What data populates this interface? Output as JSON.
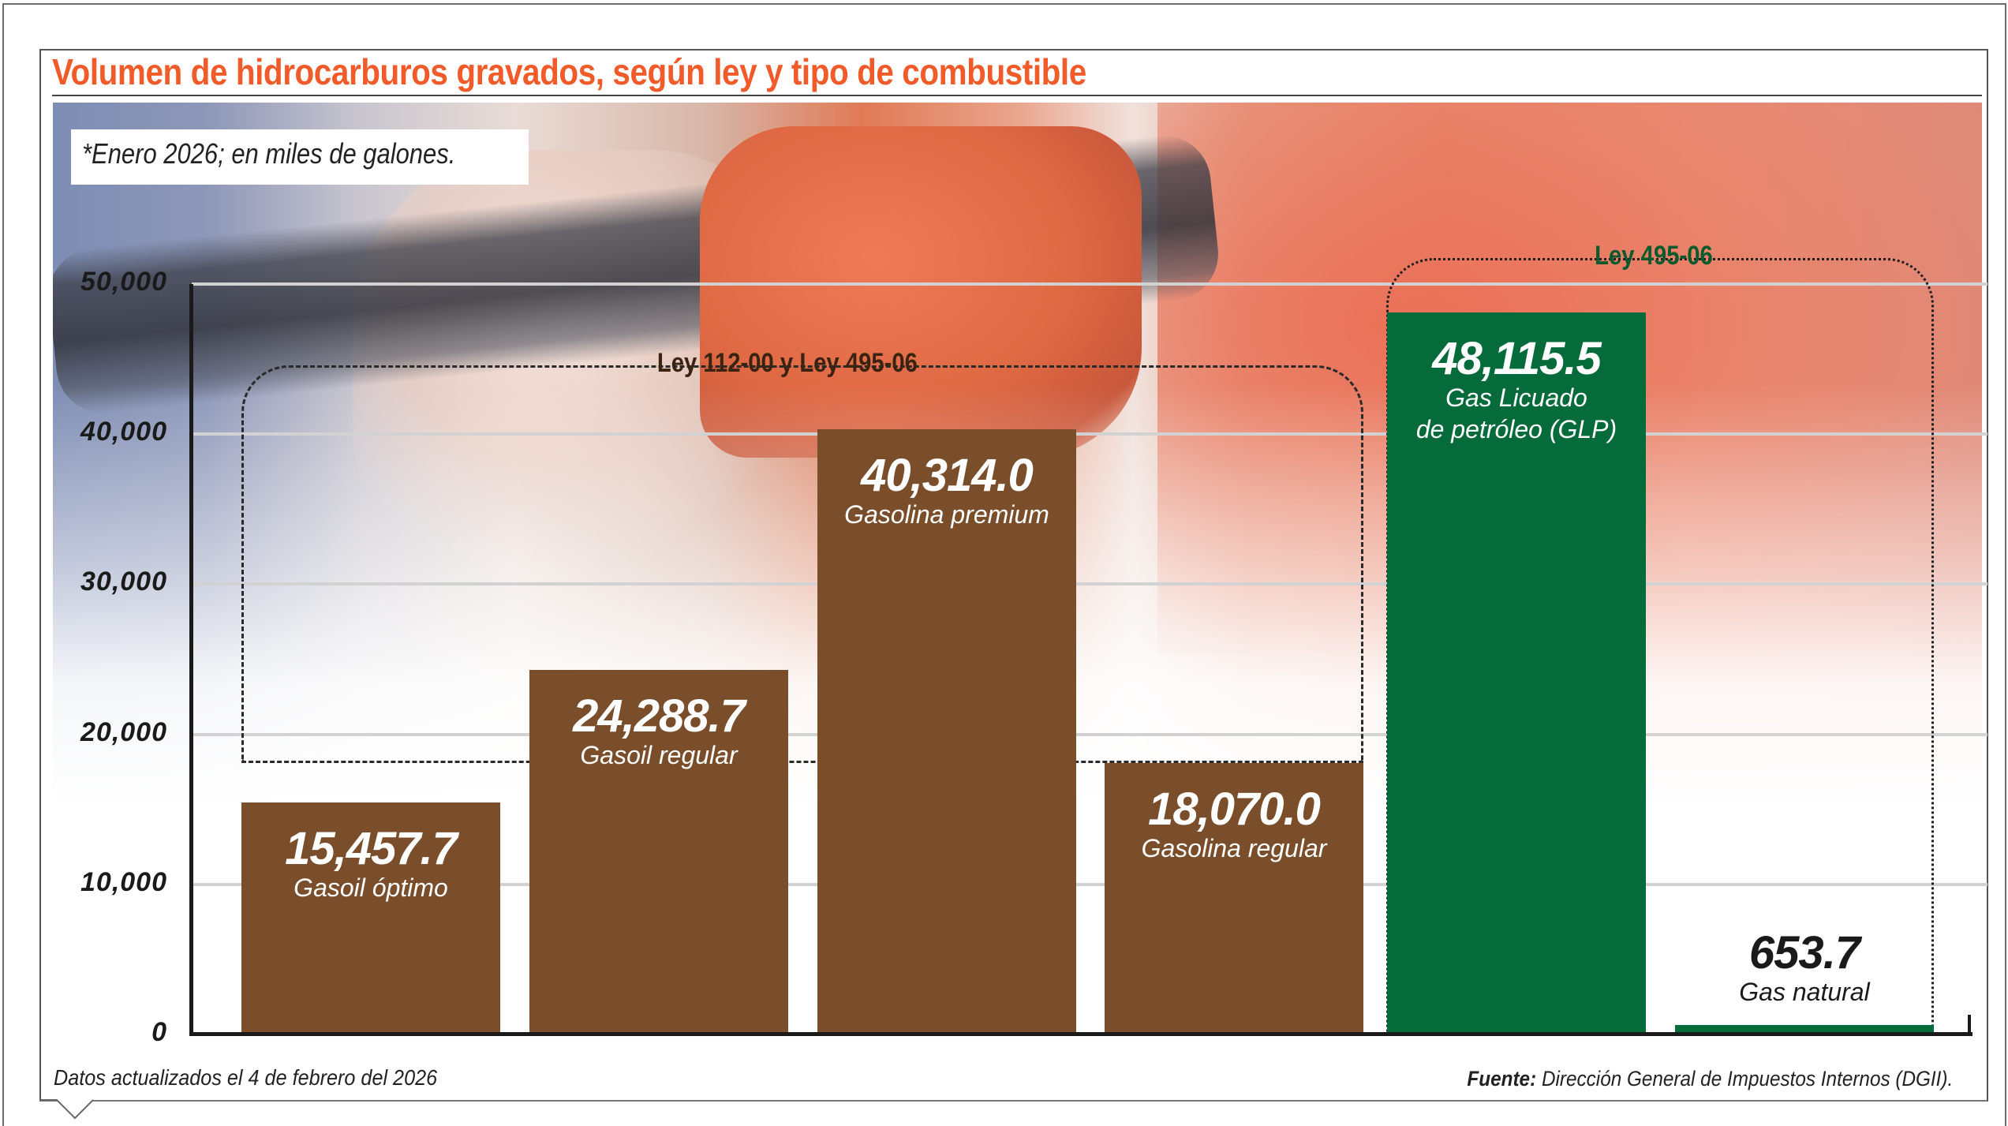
{
  "title": "Volumen de hidrocarburos gravados, según ley y tipo de combustible",
  "note": "*Enero 2026; en miles de galones.",
  "footer": {
    "updated": "Datos actualizados el 4 de febrero del 2026",
    "source_label": "Fuente:",
    "source_text": "Dirección General de Impuestos Internos (DGII)."
  },
  "colors": {
    "title": "#f15a29",
    "bar_brown": "#7a4e2a",
    "bar_green": "#056b3a",
    "group1_label": "#3b2312",
    "group2_label": "#0a5a2e",
    "gridline": "#d2d2d2",
    "axis": "#1a1a1a"
  },
  "groups": [
    {
      "label": "Ley 112-00 y Ley 495-06",
      "bars": [
        0,
        1,
        2,
        3
      ]
    },
    {
      "label": "Ley 495-06",
      "bars": [
        4,
        5
      ]
    }
  ],
  "chart_data": {
    "type": "bar",
    "title": "Volumen de hidrocarburos gravados, según ley y tipo de combustible",
    "subtitle": "*Enero 2026; en miles de galones.",
    "xlabel": "",
    "ylabel": "Miles de galones",
    "ylim": [
      0,
      50000
    ],
    "yticks": [
      "0",
      "10,000",
      "20,000",
      "30,000",
      "40,000",
      "50,000"
    ],
    "ytick_values": [
      0,
      10000,
      20000,
      30000,
      40000,
      50000
    ],
    "grid": true,
    "legend": "none",
    "categories": [
      "Gasoil óptimo",
      "Gasoil regular",
      "Gasolina premium",
      "Gasolina regular",
      "Gas Licuado de petróleo (GLP)",
      "Gas natural"
    ],
    "category_lines": [
      [
        "Gasoil óptimo"
      ],
      [
        "Gasoil regular"
      ],
      [
        "Gasolina premium"
      ],
      [
        "Gasolina regular"
      ],
      [
        "Gas Licuado",
        "de petróleo (GLP)"
      ],
      [
        "Gas natural"
      ]
    ],
    "values": [
      15457.7,
      24288.7,
      40314.0,
      18070.0,
      48115.5,
      653.7
    ],
    "value_labels": [
      "15,457.7",
      "24,288.7",
      "40,314.0",
      "18,070.0",
      "48,115.5",
      "653.7"
    ],
    "bar_groups": [
      "Ley 112-00 y Ley 495-06",
      "Ley 112-00 y Ley 495-06",
      "Ley 112-00 y Ley 495-06",
      "Ley 112-00 y Ley 495-06",
      "Ley 495-06",
      "Ley 495-06"
    ],
    "annotations": [
      "Ley 112-00 y Ley 495-06",
      "Ley 495-06"
    ],
    "source": "Fuente: Dirección General de Impuestos Internos (DGII).",
    "footnote": "Datos actualizados el 4 de febrero del 2026"
  }
}
